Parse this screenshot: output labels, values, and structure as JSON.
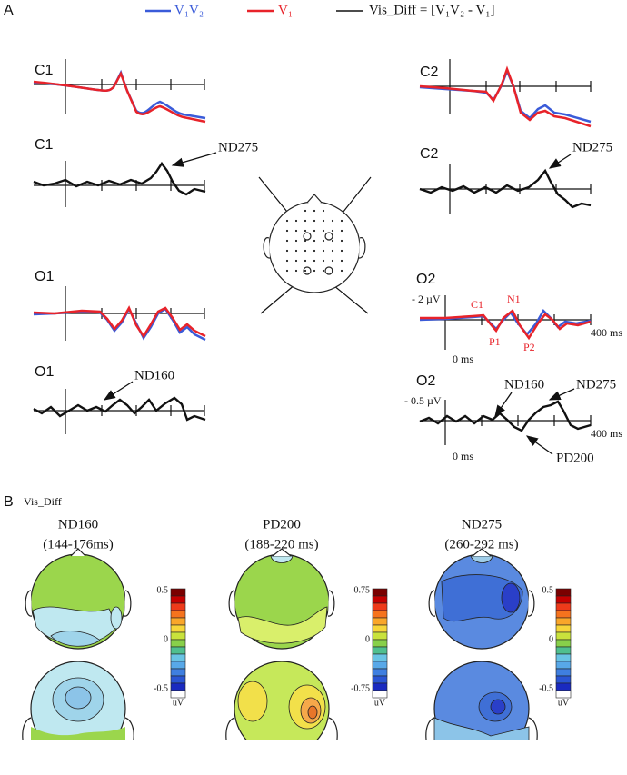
{
  "panel_a": {
    "label": "A",
    "legend": [
      "V₁V₂",
      "V₁",
      "Vis_Diff = [V₁V₂ - V₁]"
    ],
    "plots": [
      {
        "label": "C1"
      },
      {
        "label": "C1",
        "annotation": "ND275"
      },
      {
        "label": "O1"
      },
      {
        "label": "O1",
        "annotation": "ND160"
      },
      {
        "label": "C2"
      },
      {
        "label": "C2",
        "annotation": "ND275"
      },
      {
        "label": "O2",
        "peaks": [
          "C1",
          "N1",
          "P1",
          "P2"
        ],
        "scale": "- 2 µV",
        "time_end": "400 ms",
        "time_zero": "0 ms"
      },
      {
        "label": "O2",
        "annotations": [
          "ND160",
          "ND275",
          "PD200"
        ],
        "scale": "- 0.5 µV",
        "time_end": "400 ms",
        "time_zero": "0 ms"
      }
    ]
  },
  "panel_b": {
    "label": "B",
    "title": "Vis_Diff",
    "maps": [
      {
        "component": "ND160",
        "window": "(144-176ms)",
        "colorbar": {
          "ticks": [
            "0.5",
            "0",
            "-0.5"
          ],
          "unit": "uV"
        }
      },
      {
        "component": "PD200",
        "window": "(188-220 ms)",
        "colorbar": {
          "ticks": [
            "0.75",
            "0",
            "-0.75"
          ],
          "unit": "uV"
        }
      },
      {
        "component": "ND275",
        "window": "(260-292 ms)",
        "colorbar": {
          "ticks": [
            "0.5",
            "0",
            "-0.5"
          ],
          "unit": "uV"
        }
      }
    ]
  }
}
